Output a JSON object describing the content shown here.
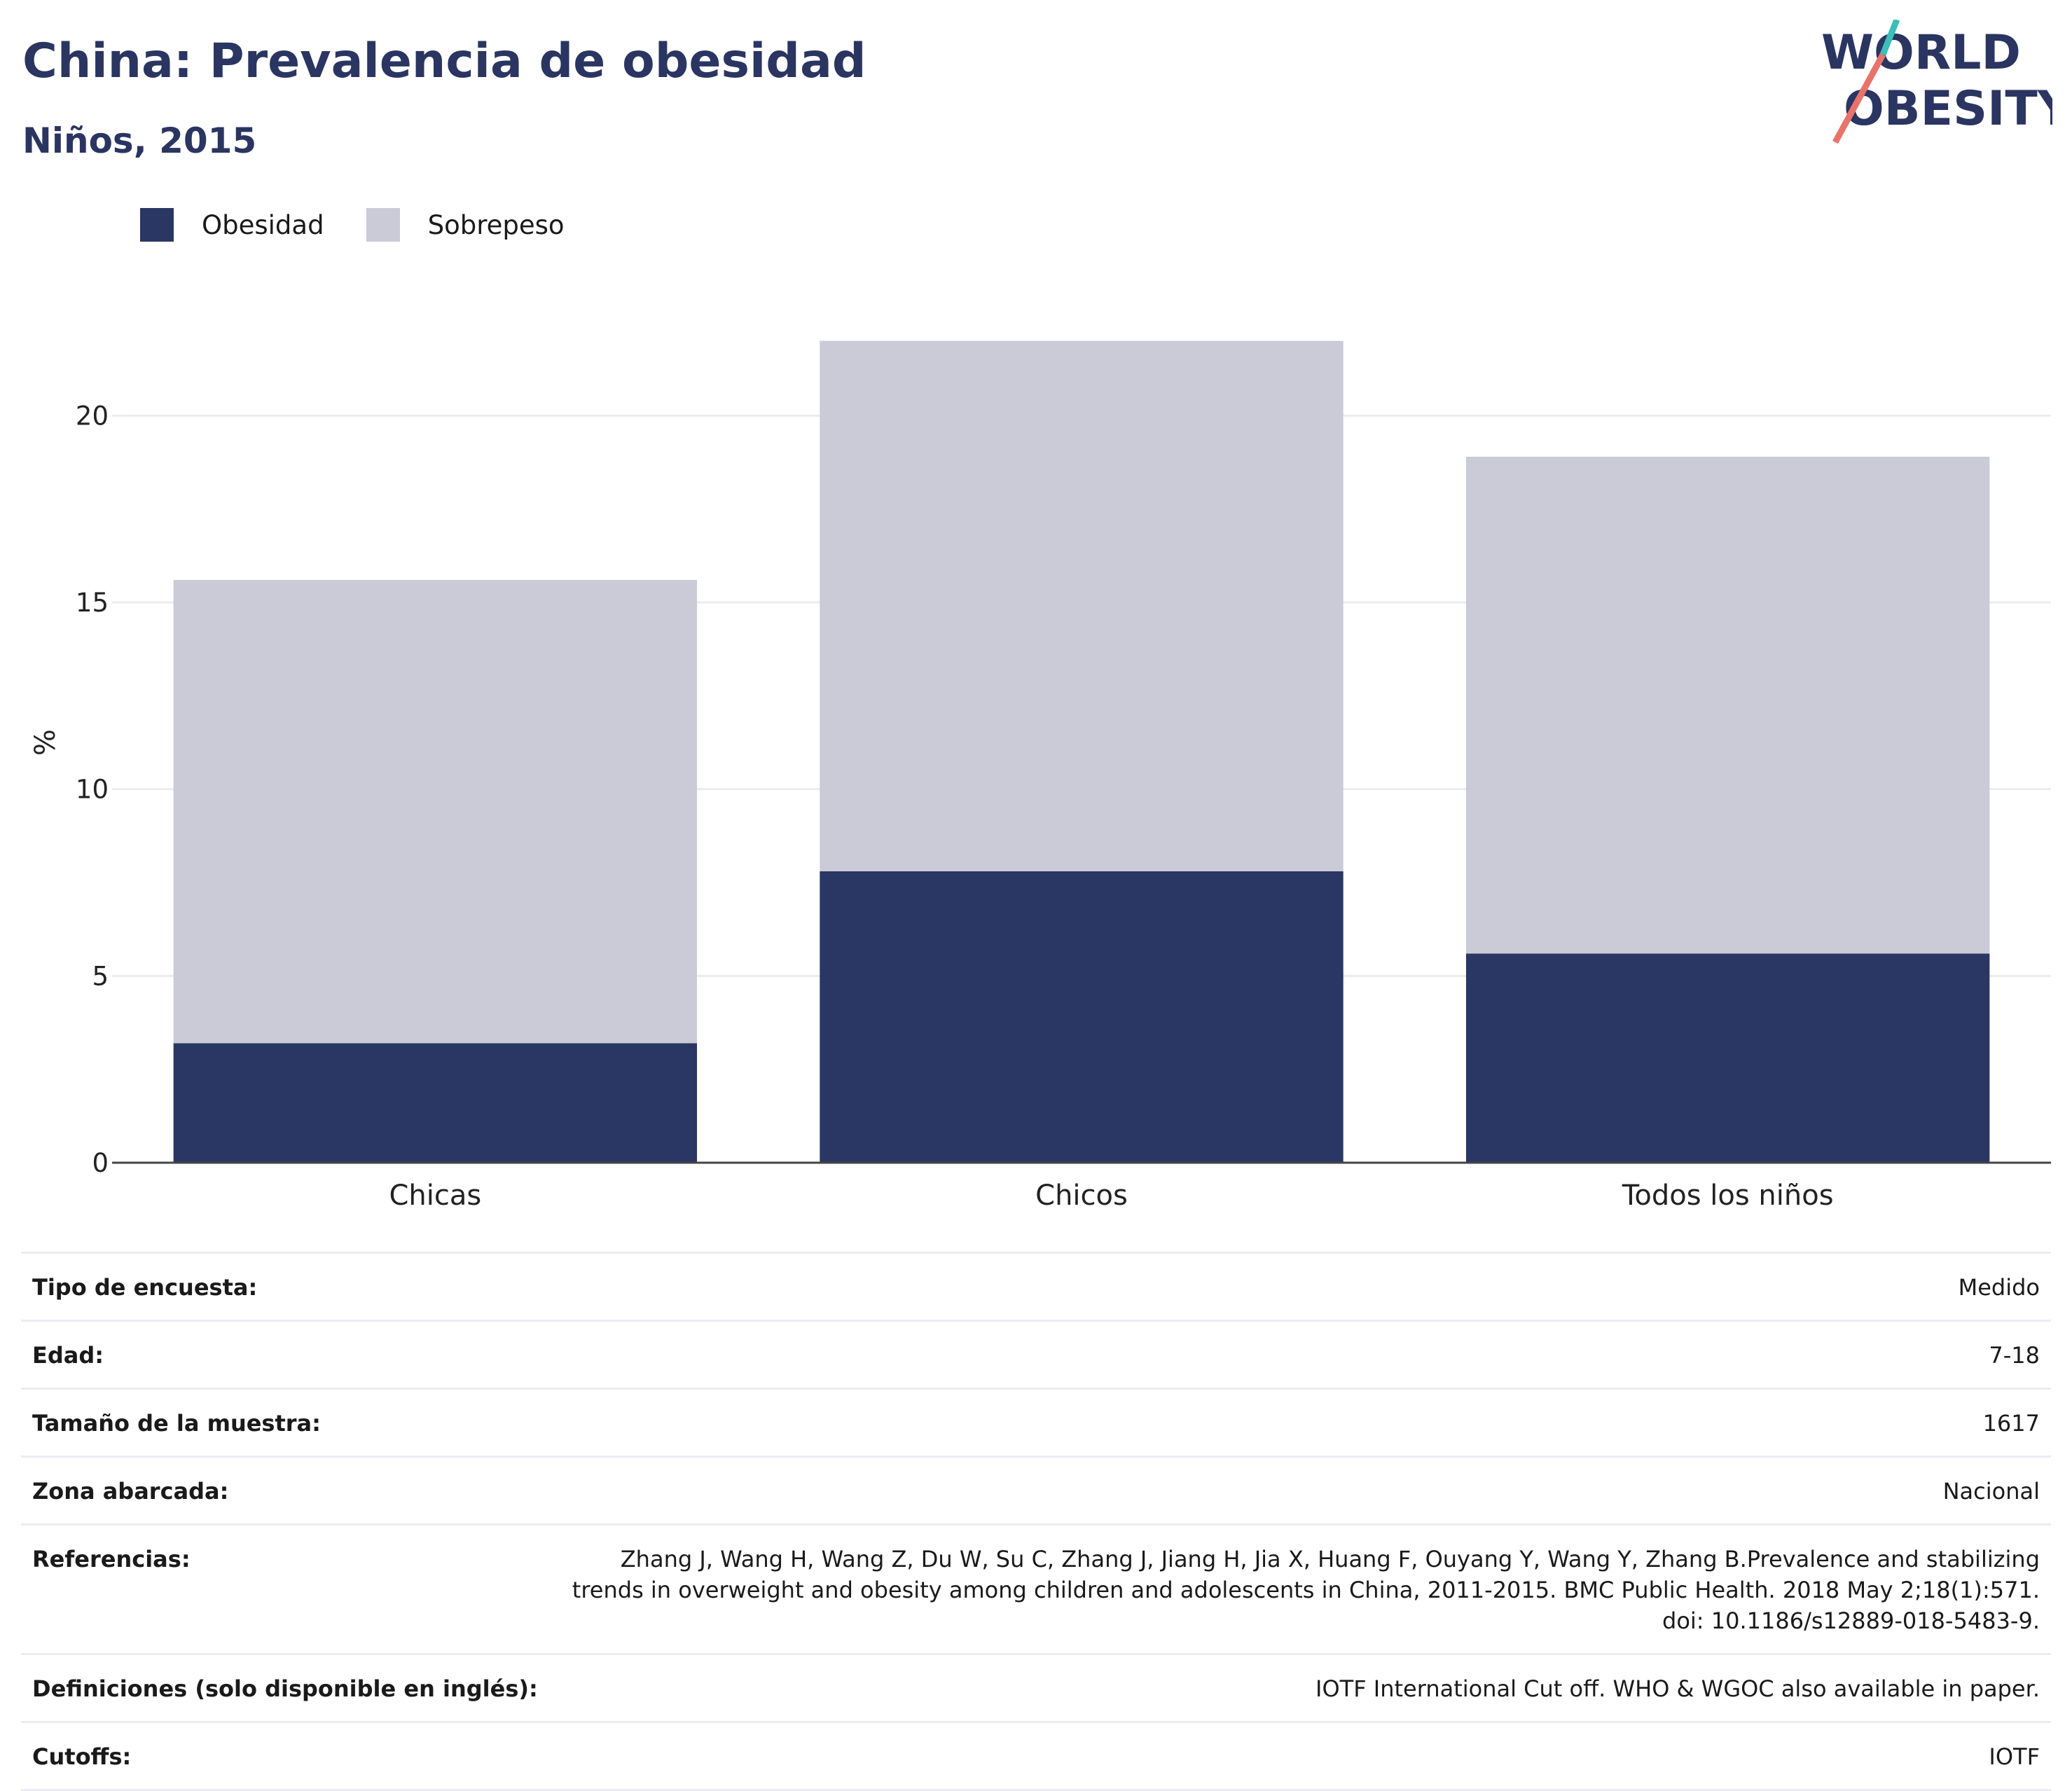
{
  "title": "China: Prevalencia de obesidad",
  "subtitle": "Niños, 2015",
  "logo": {
    "line1": "WORLD",
    "line2": "OBESITY"
  },
  "colors": {
    "obesity": "#2a3663",
    "overweight": "#cacbd7",
    "title": "#2a3561",
    "logo_teal": "#3bbfb8",
    "logo_coral": "#e8736a"
  },
  "legend": [
    {
      "label": "Obesidad",
      "color": "#2a3663"
    },
    {
      "label": "Sobrepeso",
      "color": "#cacbd7"
    }
  ],
  "chart_data": {
    "type": "bar",
    "stacked": true,
    "categories": [
      "Chicas",
      "Chicos",
      "Todos los niños"
    ],
    "series": [
      {
        "name": "Obesidad",
        "values": [
          3.2,
          7.8,
          5.6
        ]
      },
      {
        "name": "Sobrepeso",
        "values": [
          12.4,
          14.2,
          13.3
        ]
      }
    ],
    "ylabel": "%",
    "yticks": [
      0,
      5,
      10,
      15,
      20
    ],
    "ylim": [
      0,
      22.5
    ],
    "grid": true,
    "legend_position": "top-left"
  },
  "info": [
    {
      "label": "Tipo de encuesta:",
      "value": "Medido"
    },
    {
      "label": "Edad:",
      "value": "7-18"
    },
    {
      "label": "Tamaño de la muestra:",
      "value": "1617"
    },
    {
      "label": "Zona abarcada:",
      "value": "Nacional"
    },
    {
      "label": "Referencias:",
      "value": "Zhang J, Wang H, Wang Z, Du W, Su C, Zhang J, Jiang H, Jia X, Huang F, Ouyang Y, Wang Y, Zhang B.Prevalence and stabilizing trends in overweight and obesity among children and adolescents in China, 2011-2015. BMC Public Health. 2018 May 2;18(1):571. doi: 10.1186/s12889-018-5483-9."
    },
    {
      "label": "Definiciones (solo disponible en inglés):",
      "value": "IOTF International Cut off. WHO & WGOC also available in paper."
    },
    {
      "label": "Cutoffs:",
      "value": "IOTF"
    }
  ]
}
